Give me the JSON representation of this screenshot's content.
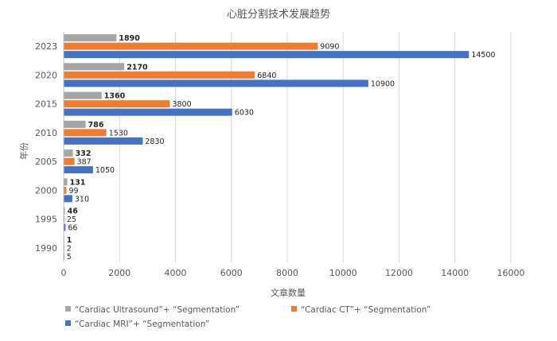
{
  "chart_data": {
    "type": "bar",
    "orientation": "horizontal",
    "title": "心脏分割技术发展趋势",
    "xlabel": "文章数量",
    "ylabel": "年份",
    "xlim": [
      0,
      16000
    ],
    "xticks": [
      0,
      2000,
      4000,
      6000,
      8000,
      10000,
      12000,
      14000,
      16000
    ],
    "grid": "vertical",
    "legend_position": "bottom",
    "categories": [
      "2023",
      "2020",
      "2015",
      "2010",
      "2005",
      "2000",
      "1995",
      "1990"
    ],
    "series": [
      {
        "name": "“Cardiac Ultrasound”+ “Segmentation”",
        "color": "#a5a5a5",
        "values": [
          1890,
          2170,
          1360,
          786,
          332,
          131,
          46,
          1
        ]
      },
      {
        "name": "“Cardiac CT”+ “Segmentation”",
        "color": "#ed7d31",
        "values": [
          9090,
          6840,
          3800,
          1530,
          387,
          99,
          25,
          2
        ]
      },
      {
        "name": "“Cardiac MRI”+ “Segmentation”",
        "color": "#4472c4",
        "values": [
          14500,
          10900,
          6030,
          2830,
          1050,
          310,
          66,
          5
        ]
      }
    ]
  }
}
